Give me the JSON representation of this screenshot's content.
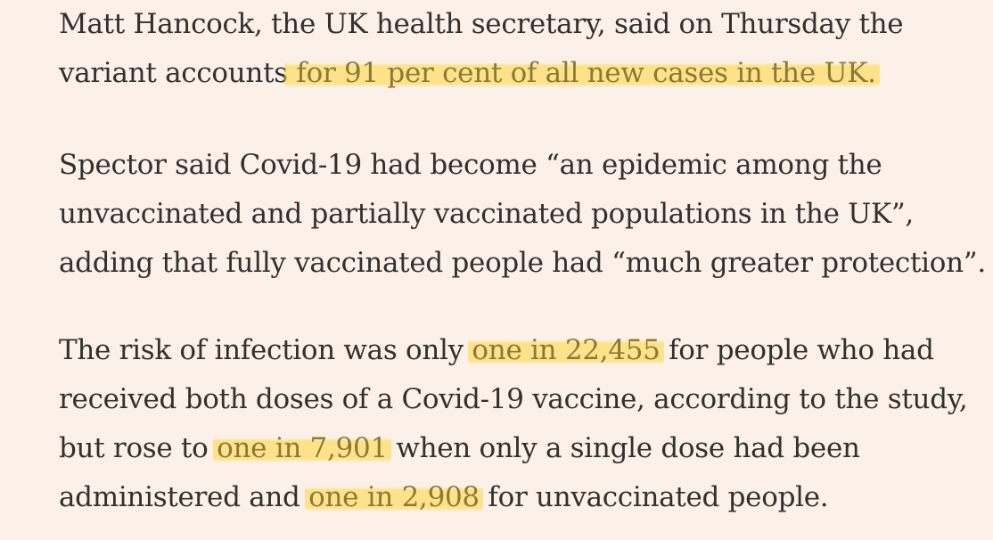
{
  "article": {
    "paragraph1": {
      "line1": "Matt Hancock, the UK health secretary, said on Thursday the",
      "line2_before": "variant accounts",
      "line2_highlight": " for 91 per cent of all new cases in the UK."
    },
    "paragraph2": {
      "line1": "Spector said Covid-19 had become “an epidemic among the",
      "line2": "unvaccinated and partially vaccinated populations in the UK”,",
      "line3": "adding that fully vaccinated people had “much greater protection”."
    },
    "paragraph3": {
      "line1_before": "The risk of infection was only ",
      "line1_highlight": "one in 22,455",
      "line1_after": " for people who had",
      "line2": "received both doses of a Covid-19 vaccine, according to the study,",
      "line3_before": "but rose to ",
      "line3_highlight": "one in 7,901",
      "line3_after": " when only a single dose had been",
      "line4_before": "administered and ",
      "line4_highlight": "one in 2,908",
      "line4_after": " for unvaccinated people."
    }
  },
  "colors": {
    "background": "#fcf1e8",
    "text": "#33302e",
    "highlight": "#ffd63c"
  }
}
